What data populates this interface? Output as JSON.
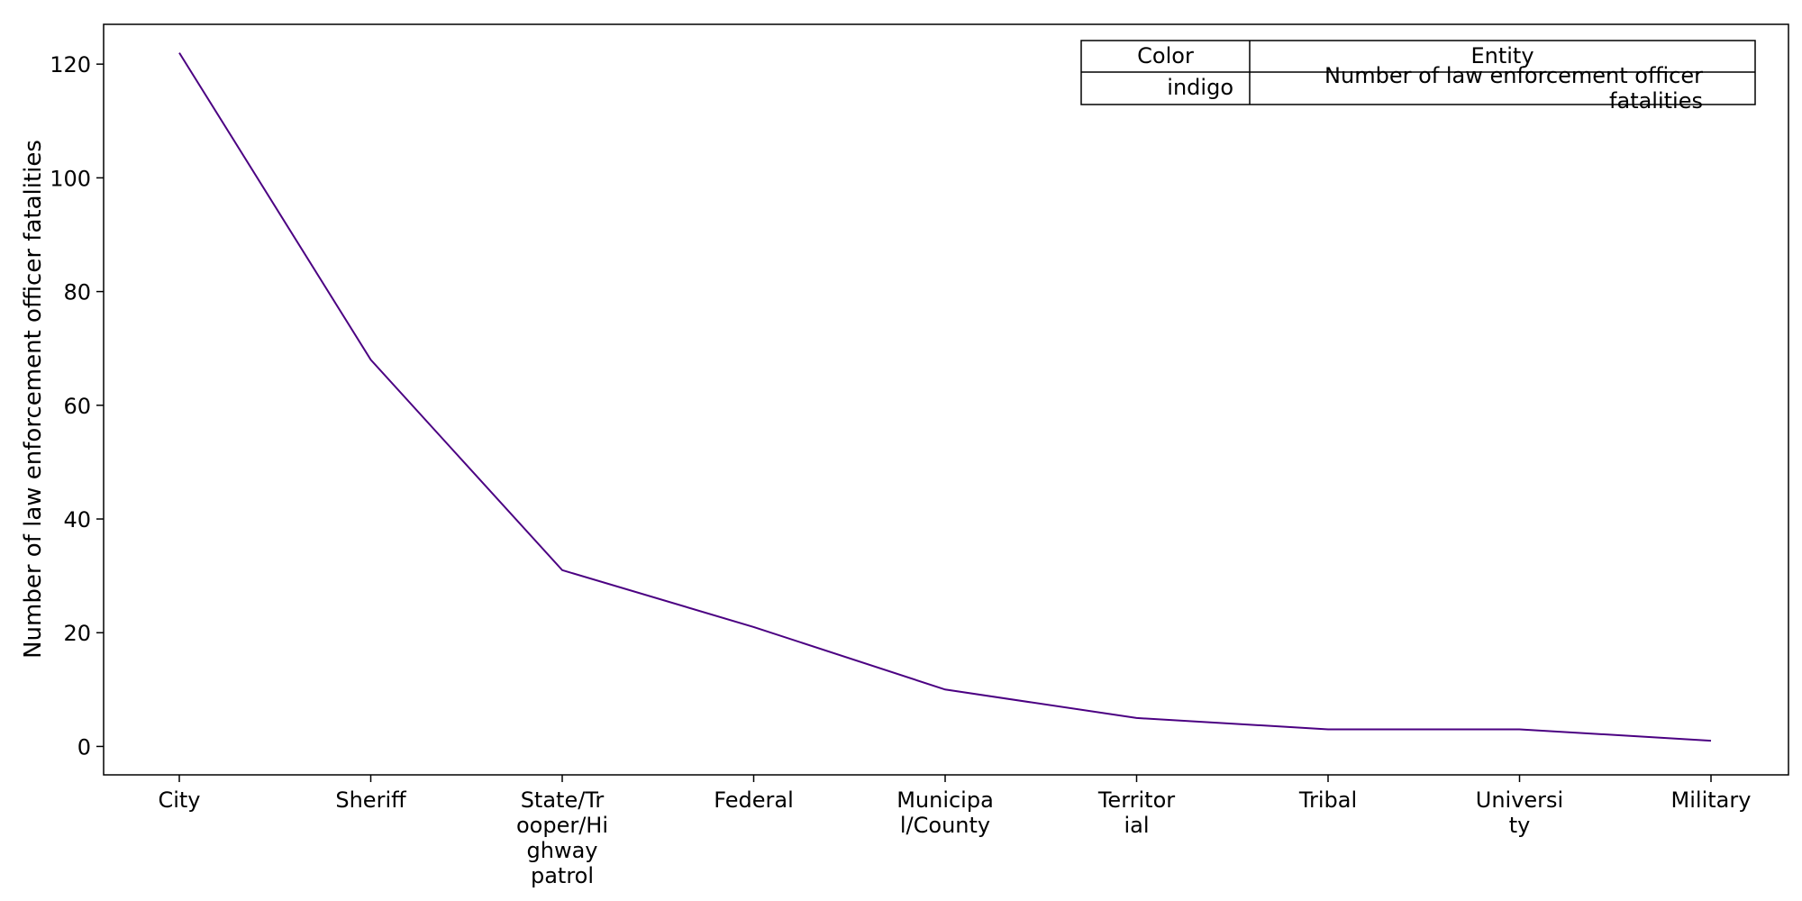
{
  "chart_data": {
    "type": "line",
    "title": "",
    "xlabel": "",
    "ylabel": "Number of law enforcement officer fatalities",
    "categories": [
      "City",
      "Sheriff",
      "State/Trooper/Highway patrol",
      "Federal",
      "Municipal/County",
      "Territorial",
      "Tribal",
      "University",
      "Military"
    ],
    "category_lines": [
      [
        "City"
      ],
      [
        "Sheriff"
      ],
      [
        "State/Tr",
        "ooper/Hi",
        "ghway",
        "patrol"
      ],
      [
        "Federal"
      ],
      [
        "Municipa",
        "l/County"
      ],
      [
        "Territor",
        "ial"
      ],
      [
        "Tribal"
      ],
      [
        "Universi",
        "ty"
      ],
      [
        "Military"
      ]
    ],
    "series": [
      {
        "name": "Number of law enforcement officer fatalities",
        "color": "#4b0082",
        "values": [
          122,
          68,
          31,
          21,
          10,
          5,
          3,
          3,
          1
        ]
      }
    ],
    "ylim": [
      -5,
      127
    ],
    "yticks": [
      0,
      20,
      40,
      60,
      80,
      100,
      120
    ],
    "grid": false,
    "legend": {
      "placement": "top-right",
      "headers": [
        "Color",
        "Entity"
      ],
      "rows": [
        {
          "color_name": "indigo",
          "entity_lines": [
            "Number of law enforcement officer",
            "fatalities"
          ]
        }
      ]
    }
  }
}
